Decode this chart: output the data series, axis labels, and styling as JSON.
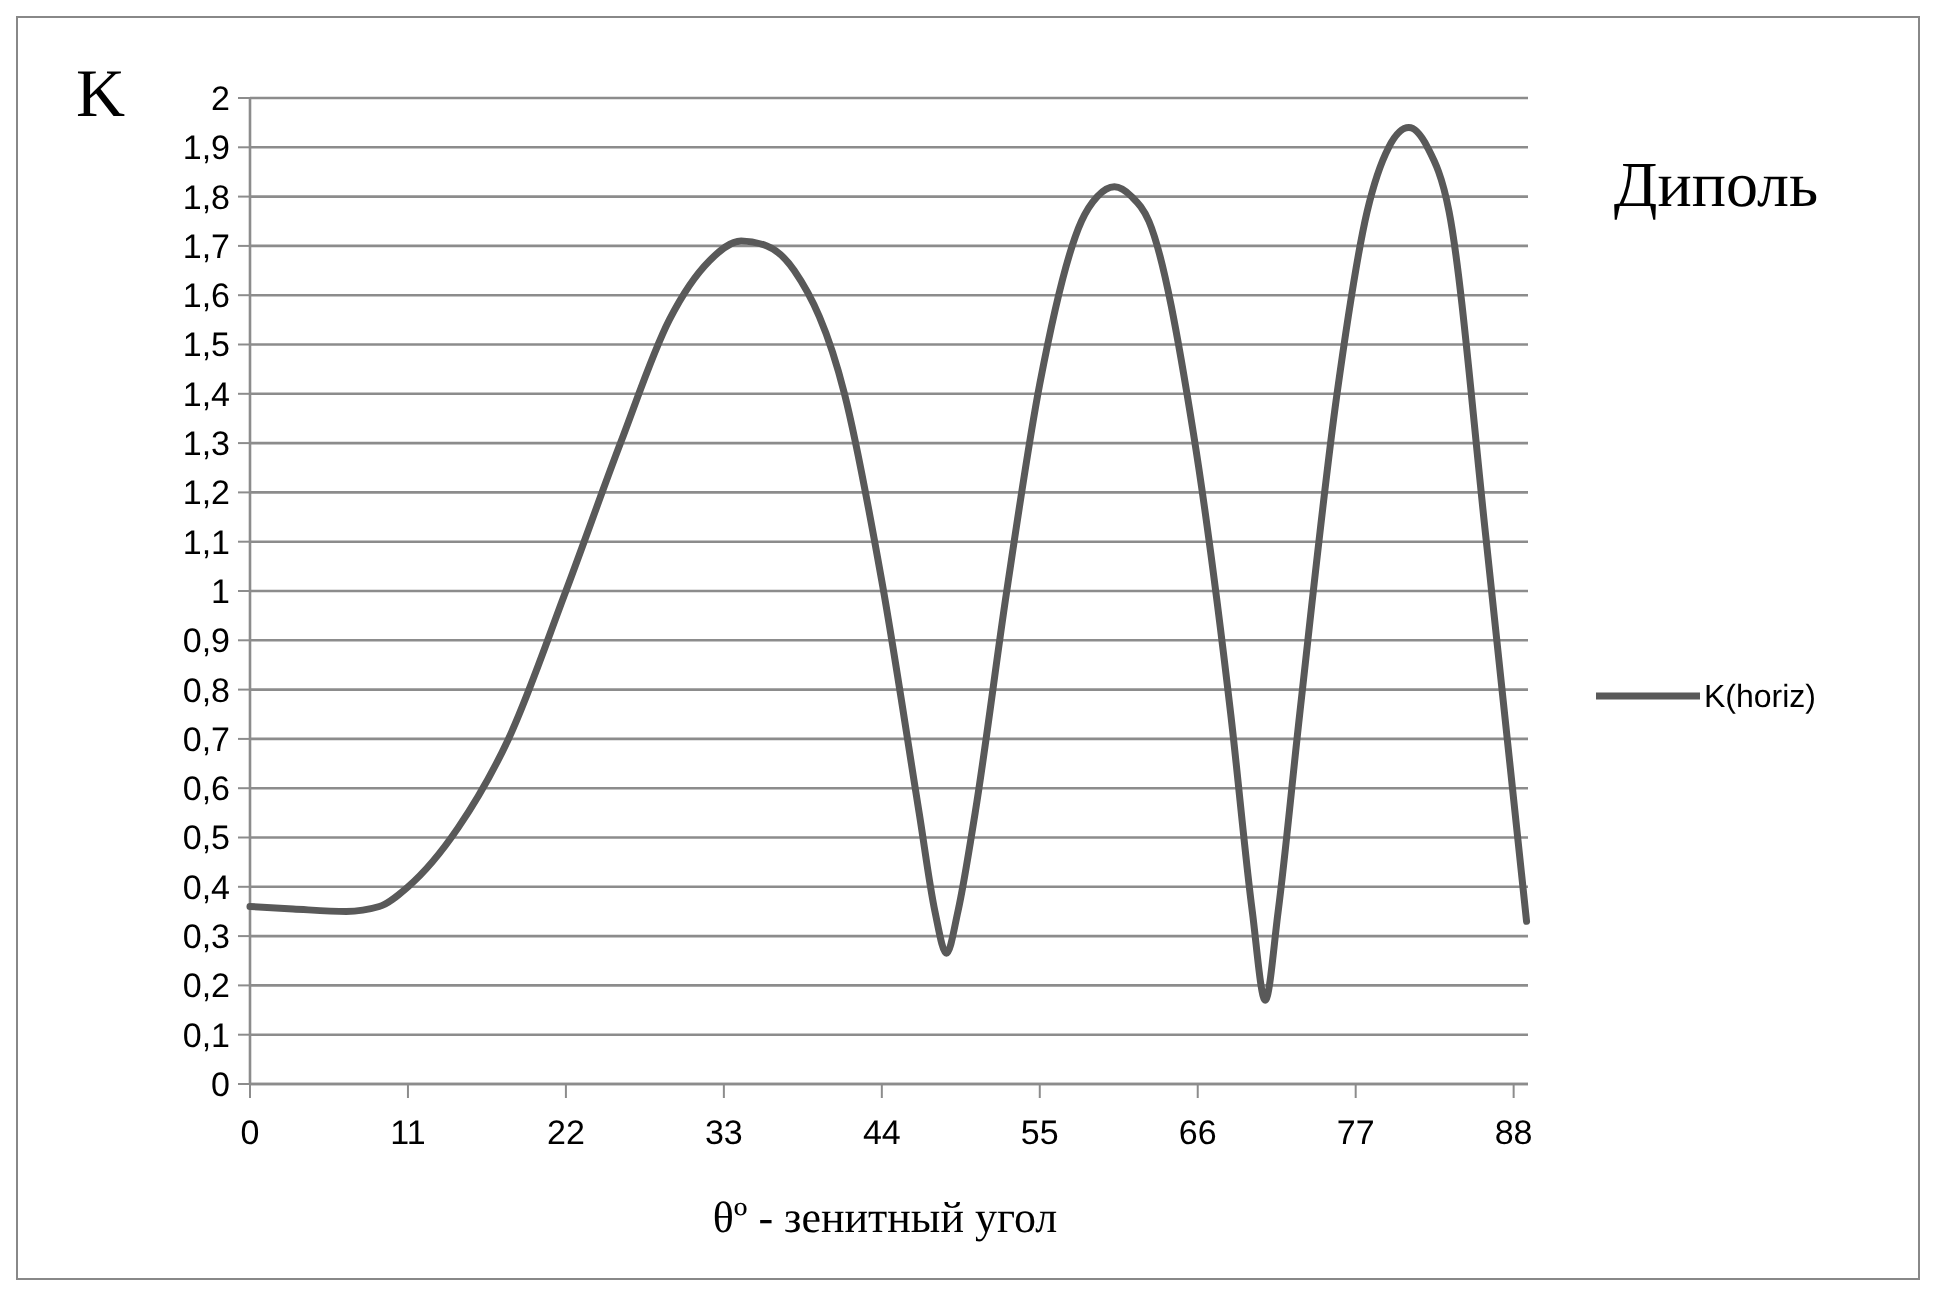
{
  "chart_data": {
    "type": "line",
    "title": "Диполь",
    "xlabel": "θº - зенитный угол",
    "ylabel": "K",
    "xlim": [
      0,
      89
    ],
    "xticks": [
      0,
      11,
      22,
      33,
      44,
      55,
      66,
      77,
      88
    ],
    "ylim": [
      0,
      2
    ],
    "yticks": [
      0,
      {
        "value": 0.1,
        "label": "0,1"
      },
      {
        "value": 0.2,
        "label": "0,2"
      },
      {
        "value": 0.3,
        "label": "0,3"
      },
      {
        "value": 0.4,
        "label": "0,4"
      },
      {
        "value": 0.5,
        "label": "0,5"
      },
      {
        "value": 0.6,
        "label": "0,6"
      },
      {
        "value": 0.7,
        "label": "0,7"
      },
      {
        "value": 0.8,
        "label": "0,8"
      },
      {
        "value": 0.9,
        "label": "0,9"
      },
      1,
      {
        "value": 1.1,
        "label": "1,1"
      },
      {
        "value": 1.2,
        "label": "1,2"
      },
      {
        "value": 1.3,
        "label": "1,3"
      },
      {
        "value": 1.4,
        "label": "1,4"
      },
      {
        "value": 1.5,
        "label": "1,5"
      },
      {
        "value": 1.6,
        "label": "1,6"
      },
      {
        "value": 1.7,
        "label": "1,7"
      },
      {
        "value": 1.8,
        "label": "1,8"
      },
      {
        "value": 1.9,
        "label": "1,9"
      },
      2
    ],
    "grid": "y",
    "legend": "right",
    "marker": "none",
    "line_style": "solid",
    "x": [
      0,
      3,
      6.7,
      9,
      11,
      14.5,
      18,
      22,
      25.8,
      29.2,
      32,
      34.2,
      36,
      37.9,
      41.4,
      44,
      46.6,
      47.7,
      48.5,
      49.3,
      50.5,
      52.7,
      55,
      57.9,
      59,
      60.2,
      61.4,
      62.6,
      65.7,
      68.3,
      69.8,
      70.7,
      71.6,
      73.1,
      75.7,
      77.8,
      79.3,
      80.7,
      82,
      83.5,
      86.1,
      88.9
    ],
    "series": [
      {
        "name": "K(horiz)",
        "color": "#595959",
        "values": [
          0.36,
          0.355,
          0.35,
          0.36,
          0.4,
          0.52,
          0.7,
          1.0,
          1.3,
          1.55,
          1.67,
          1.71,
          1.7,
          1.65,
          1.4,
          1.02,
          0.55,
          0.35,
          0.265,
          0.35,
          0.55,
          1.0,
          1.42,
          1.75,
          1.8,
          1.82,
          1.8,
          1.75,
          1.32,
          0.75,
          0.35,
          0.17,
          0.35,
          0.75,
          1.4,
          1.77,
          1.9,
          1.94,
          1.9,
          1.77,
          1.1,
          0.33
        ]
      }
    ]
  }
}
